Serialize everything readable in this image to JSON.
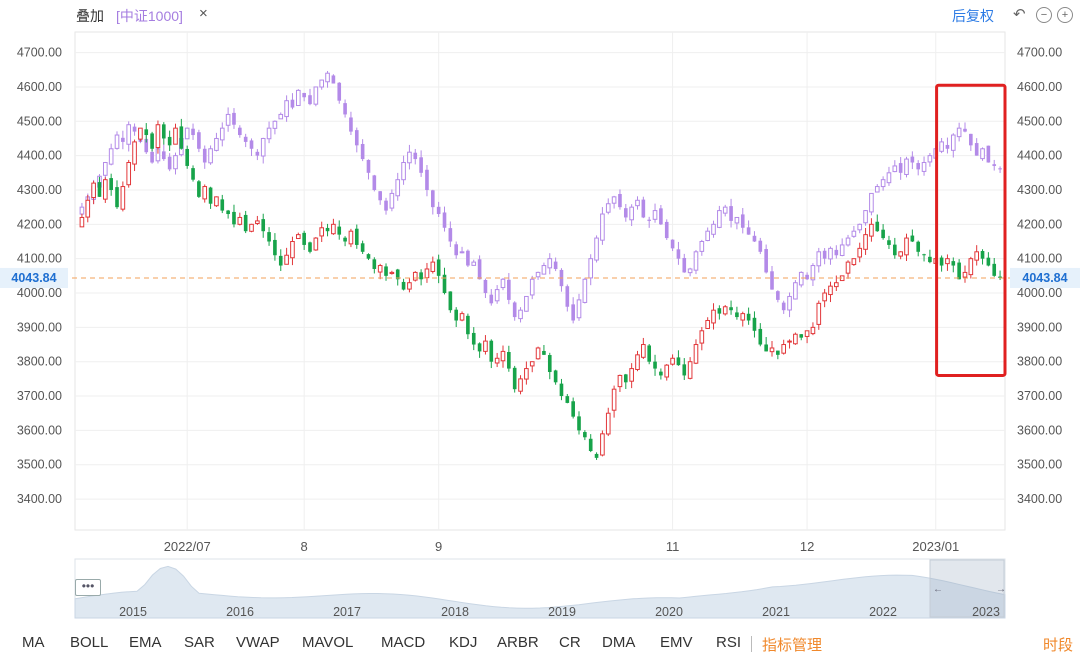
{
  "toolbar": {
    "overlay_label": "叠加",
    "overlay_symbol": "[中证1000]",
    "close_glyph": "×",
    "adjust_label": "后复权",
    "undo_glyph": "↶",
    "zoom_out_glyph": "−",
    "zoom_in_glyph": "+"
  },
  "navigator": {
    "years": [
      "2015",
      "2016",
      "2017",
      "2018",
      "2019",
      "2020",
      "2021",
      "2022",
      "2023"
    ],
    "dots": "•••",
    "left_arrow": "←",
    "right_arrow": "→"
  },
  "indicators": [
    "MA",
    "BOLL",
    "EMA",
    "SAR",
    "VWAP",
    "MAVOL",
    "MACD",
    "KDJ",
    "ARBR",
    "CR",
    "DMA",
    "EMV",
    "RSI"
  ],
  "indicator_manage": "指标管理",
  "period_label": "时段",
  "chart_data": {
    "type": "candlestick",
    "y_ticks": [
      3400,
      3500,
      3600,
      3700,
      3800,
      3900,
      4000,
      4100,
      4200,
      4300,
      4400,
      4500,
      4600,
      4700
    ],
    "y_tick_labels": [
      "3400.00",
      "3500.00",
      "3600.00",
      "3700.00",
      "3800.00",
      "3900.00",
      "4000.00",
      "4100.00",
      "4200.00",
      "4300.00",
      "4400.00",
      "4500.00",
      "4600.00",
      "4700.00"
    ],
    "ylim": [
      3310,
      4760
    ],
    "x_labels": [
      {
        "label": "2022/07",
        "index": 18
      },
      {
        "label": "8",
        "index": 38
      },
      {
        "label": "9",
        "index": 61
      },
      {
        "label": "11",
        "index": 101
      },
      {
        "label": "12",
        "index": 124
      },
      {
        "label": "2023/01",
        "index": 146
      }
    ],
    "current_price": 4043.84,
    "current_price_label": "4043.84",
    "grid": true,
    "up_color": "#e2373a",
    "down_color": "#17a34a",
    "overlay_color": "#b38ae8",
    "highlight_box_color": "#e02020",
    "highlight_range": {
      "start_index": 147,
      "end_index": 181,
      "y_top": 4605,
      "y_bottom": 3760
    },
    "main_closes": [
      4220,
      4270,
      4320,
      4280,
      4330,
      4300,
      4250,
      4310,
      4380,
      4440,
      4480,
      4460,
      4420,
      4490,
      4450,
      4430,
      4480,
      4420,
      4370,
      4330,
      4280,
      4310,
      4260,
      4280,
      4240,
      4230,
      4200,
      4220,
      4180,
      4200,
      4210,
      4180,
      4150,
      4110,
      4080,
      4110,
      4150,
      4170,
      4140,
      4120,
      4160,
      4190,
      4180,
      4200,
      4170,
      4150,
      4180,
      4140,
      4120,
      4100,
      4070,
      4080,
      4050,
      4060,
      4040,
      4010,
      4030,
      4060,
      4040,
      4070,
      4090,
      4050,
      4000,
      3950,
      3920,
      3940,
      3880,
      3850,
      3830,
      3860,
      3800,
      3810,
      3830,
      3780,
      3720,
      3750,
      3780,
      3800,
      3840,
      3820,
      3770,
      3740,
      3700,
      3680,
      3640,
      3600,
      3580,
      3540,
      3520,
      3590,
      3650,
      3720,
      3760,
      3740,
      3780,
      3820,
      3850,
      3800,
      3780,
      3760,
      3790,
      3810,
      3790,
      3760,
      3800,
      3850,
      3890,
      3920,
      3950,
      3940,
      3960,
      3950,
      3930,
      3940,
      3920,
      3890,
      3850,
      3830,
      3840,
      3820,
      3850,
      3860,
      3880,
      3870,
      3890,
      3900,
      3970,
      4000,
      4020,
      4030,
      4050,
      4090,
      4100,
      4130,
      4170,
      4200,
      4180,
      4160,
      4140,
      4110,
      4120,
      4160,
      4150,
      4120,
      4110,
      4090,
      4100,
      4080,
      4100,
      4080,
      4040,
      4060,
      4100,
      4120,
      4100,
      4080,
      4050,
      4043.84
    ],
    "overlay_closes": [
      4250,
      4280,
      4310,
      4340,
      4380,
      4420,
      4460,
      4440,
      4490,
      4470,
      4440,
      4410,
      4380,
      4420,
      4390,
      4360,
      4400,
      4450,
      4480,
      4460,
      4420,
      4380,
      4420,
      4450,
      4480,
      4520,
      4490,
      4460,
      4440,
      4420,
      4400,
      4450,
      4480,
      4500,
      4520,
      4560,
      4540,
      4590,
      4570,
      4550,
      4600,
      4620,
      4640,
      4610,
      4560,
      4520,
      4470,
      4430,
      4390,
      4350,
      4300,
      4270,
      4240,
      4290,
      4330,
      4380,
      4410,
      4390,
      4350,
      4300,
      4250,
      4230,
      4190,
      4150,
      4110,
      4120,
      4080,
      4090,
      4040,
      4000,
      3970,
      4010,
      4040,
      3980,
      3930,
      3950,
      3990,
      4040,
      4060,
      4080,
      4100,
      4070,
      4020,
      3960,
      3920,
      3980,
      4040,
      4100,
      4160,
      4230,
      4260,
      4280,
      4250,
      4220,
      4250,
      4270,
      4220,
      4210,
      4240,
      4200,
      4160,
      4130,
      4100,
      4060,
      4070,
      4120,
      4150,
      4180,
      4200,
      4240,
      4250,
      4210,
      4220,
      4190,
      4170,
      4150,
      4120,
      4060,
      4010,
      3980,
      3950,
      3990,
      4030,
      4060,
      4040,
      4080,
      4120,
      4100,
      4130,
      4110,
      4140,
      4160,
      4180,
      4200,
      4240,
      4290,
      4310,
      4330,
      4350,
      4370,
      4350,
      4390,
      4380,
      4360,
      4380,
      4400,
      4420,
      4440,
      4420,
      4460,
      4480,
      4470,
      4430,
      4400,
      4420,
      4380,
      4370,
      4360
    ]
  }
}
